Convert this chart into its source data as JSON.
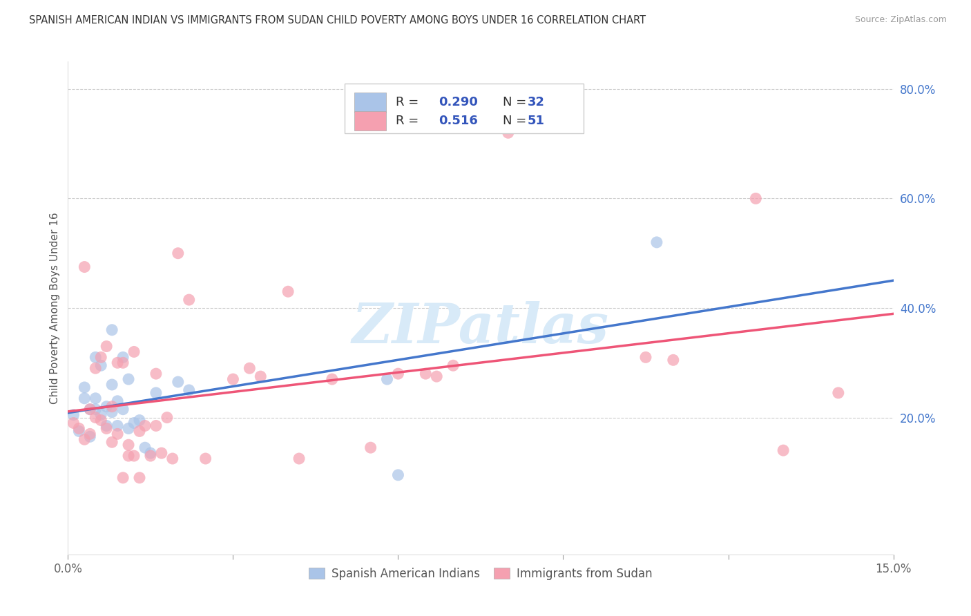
{
  "title": "SPANISH AMERICAN INDIAN VS IMMIGRANTS FROM SUDAN CHILD POVERTY AMONG BOYS UNDER 16 CORRELATION CHART",
  "source": "Source: ZipAtlas.com",
  "ylabel": "Child Poverty Among Boys Under 16",
  "xlim": [
    0.0,
    0.15
  ],
  "ylim": [
    -0.05,
    0.85
  ],
  "xticks": [
    0.0,
    0.03,
    0.06,
    0.09,
    0.12,
    0.15
  ],
  "xticklabels": [
    "0.0%",
    "",
    "",
    "",
    "",
    "15.0%"
  ],
  "yticks_right": [
    0.2,
    0.4,
    0.6,
    0.8
  ],
  "ytick_labels_right": [
    "20.0%",
    "40.0%",
    "60.0%",
    "80.0%"
  ],
  "grid_color": "#cccccc",
  "background_color": "#ffffff",
  "blue_color": "#aac4e8",
  "pink_color": "#f5a0b0",
  "blue_line_color": "#4477cc",
  "pink_line_color": "#ee5577",
  "watermark_text": "ZIPatlas",
  "watermark_color": "#d8eaf8",
  "legend_R_blue": "0.290",
  "legend_N_blue": "32",
  "legend_R_pink": "0.516",
  "legend_N_pink": "51",
  "legend_label_color": "#333333",
  "legend_value_color": "#3355bb",
  "blue_scatter_x": [
    0.001,
    0.002,
    0.003,
    0.003,
    0.004,
    0.004,
    0.005,
    0.005,
    0.005,
    0.006,
    0.006,
    0.007,
    0.007,
    0.008,
    0.008,
    0.008,
    0.009,
    0.009,
    0.01,
    0.01,
    0.011,
    0.011,
    0.012,
    0.013,
    0.014,
    0.015,
    0.016,
    0.02,
    0.022,
    0.058,
    0.06,
    0.107
  ],
  "blue_scatter_y": [
    0.205,
    0.175,
    0.235,
    0.255,
    0.215,
    0.165,
    0.215,
    0.235,
    0.31,
    0.205,
    0.295,
    0.22,
    0.185,
    0.21,
    0.26,
    0.36,
    0.23,
    0.185,
    0.215,
    0.31,
    0.18,
    0.27,
    0.19,
    0.195,
    0.145,
    0.135,
    0.245,
    0.265,
    0.25,
    0.27,
    0.095,
    0.52
  ],
  "pink_scatter_x": [
    0.001,
    0.002,
    0.003,
    0.003,
    0.004,
    0.004,
    0.005,
    0.005,
    0.006,
    0.006,
    0.007,
    0.007,
    0.008,
    0.008,
    0.009,
    0.009,
    0.01,
    0.01,
    0.011,
    0.011,
    0.012,
    0.012,
    0.013,
    0.013,
    0.014,
    0.015,
    0.016,
    0.016,
    0.017,
    0.018,
    0.019,
    0.02,
    0.022,
    0.025,
    0.03,
    0.033,
    0.035,
    0.04,
    0.042,
    0.048,
    0.055,
    0.06,
    0.065,
    0.067,
    0.07,
    0.08,
    0.11,
    0.125,
    0.13,
    0.14,
    0.105
  ],
  "pink_scatter_y": [
    0.19,
    0.18,
    0.475,
    0.16,
    0.17,
    0.215,
    0.2,
    0.29,
    0.195,
    0.31,
    0.18,
    0.33,
    0.22,
    0.155,
    0.17,
    0.3,
    0.09,
    0.3,
    0.15,
    0.13,
    0.32,
    0.13,
    0.09,
    0.175,
    0.185,
    0.13,
    0.185,
    0.28,
    0.135,
    0.2,
    0.125,
    0.5,
    0.415,
    0.125,
    0.27,
    0.29,
    0.275,
    0.43,
    0.125,
    0.27,
    0.145,
    0.28,
    0.28,
    0.275,
    0.295,
    0.72,
    0.305,
    0.6,
    0.14,
    0.245,
    0.31
  ]
}
